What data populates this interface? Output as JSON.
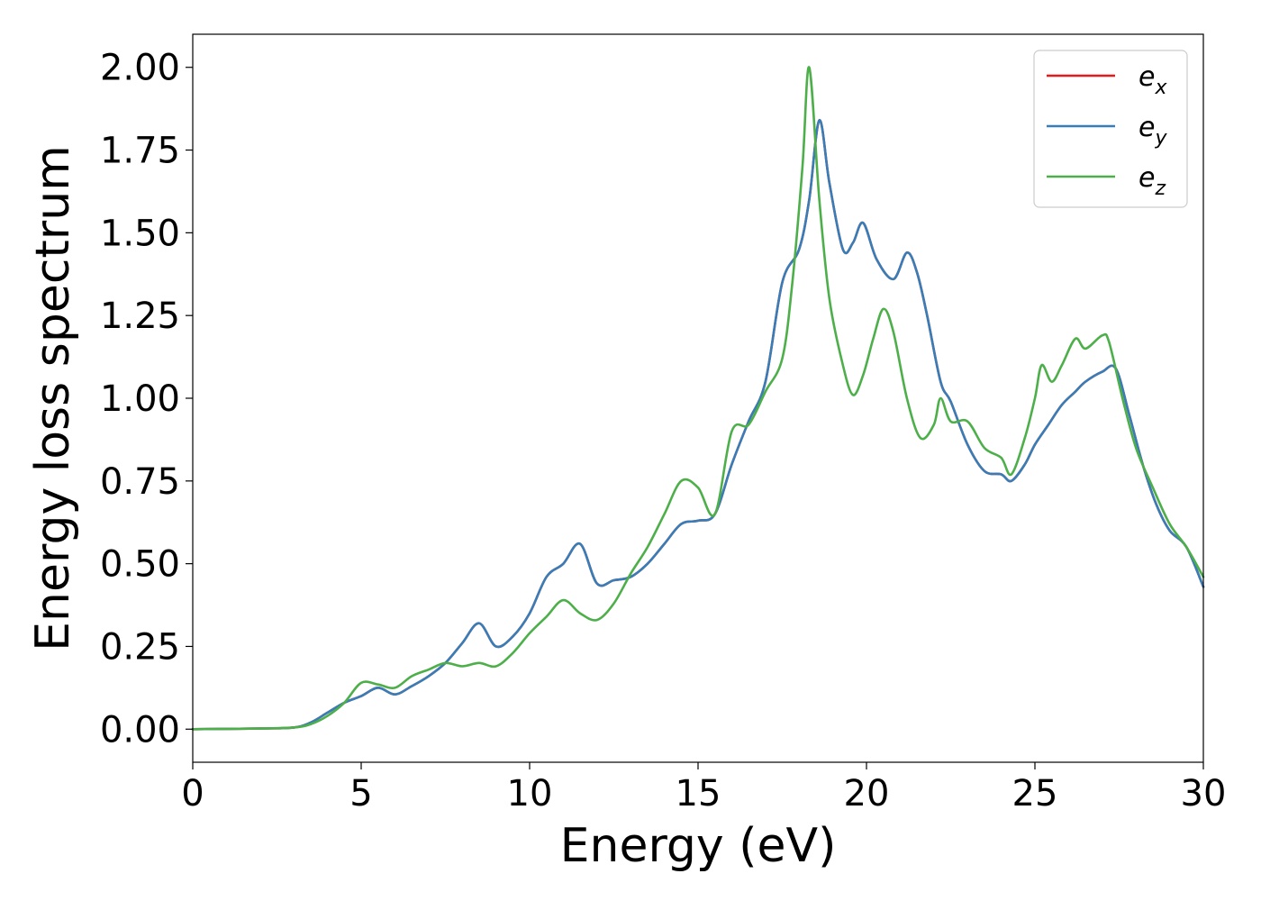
{
  "colors": {
    "ex": "#e41a1c",
    "ey": "#377eb8",
    "ez": "#4daf4a"
  },
  "chart_data": {
    "type": "line",
    "xlabel": "Energy (eV)",
    "ylabel": "Energy loss spectrum",
    "xlim": [
      0,
      30
    ],
    "ylim": [
      -0.1,
      2.1
    ],
    "xticks": [
      "0",
      "5",
      "10",
      "15",
      "20",
      "25",
      "30"
    ],
    "yticks": [
      "0.00",
      "0.25",
      "0.50",
      "0.75",
      "1.00",
      "1.25",
      "1.50",
      "1.75",
      "2.00"
    ],
    "grid": false,
    "legend_position": "top-right",
    "series": [
      {
        "name": "e_x",
        "label_base": "e",
        "label_sub": "x",
        "color": "#e41a1c",
        "x": [
          0,
          2,
          3,
          3.5,
          4,
          4.5,
          5,
          5.5,
          6,
          6.5,
          7,
          7.5,
          8,
          8.5,
          9,
          9.5,
          10,
          10.5,
          11,
          11.5,
          12,
          12.5,
          13,
          13.5,
          14,
          14.5,
          15,
          15.5,
          16,
          16.5,
          17,
          17.5,
          18,
          18.3,
          18.6,
          18.9,
          19.3,
          19.6,
          19.9,
          20.3,
          20.8,
          21.2,
          21.5,
          21.8,
          22.2,
          22.5,
          23,
          23.5,
          24,
          24.3,
          24.7,
          25,
          25.4,
          25.8,
          26.2,
          26.5,
          27,
          27.4,
          27.8,
          28.2,
          28.6,
          29,
          29.5,
          30
        ],
        "y": [
          0,
          0.002,
          0.005,
          0.02,
          0.05,
          0.08,
          0.1,
          0.125,
          0.105,
          0.13,
          0.16,
          0.2,
          0.26,
          0.32,
          0.25,
          0.28,
          0.35,
          0.46,
          0.5,
          0.56,
          0.44,
          0.45,
          0.46,
          0.5,
          0.56,
          0.62,
          0.63,
          0.65,
          0.8,
          0.93,
          1.05,
          1.35,
          1.45,
          1.6,
          1.84,
          1.65,
          1.45,
          1.47,
          1.53,
          1.42,
          1.36,
          1.44,
          1.38,
          1.25,
          1.05,
          0.99,
          0.86,
          0.78,
          0.77,
          0.75,
          0.8,
          0.86,
          0.92,
          0.98,
          1.02,
          1.05,
          1.08,
          1.09,
          0.95,
          0.8,
          0.68,
          0.6,
          0.55,
          0.43
        ]
      },
      {
        "name": "e_y",
        "label_base": "e",
        "label_sub": "y",
        "color": "#377eb8",
        "x": [
          0,
          2,
          3,
          3.5,
          4,
          4.5,
          5,
          5.5,
          6,
          6.5,
          7,
          7.5,
          8,
          8.5,
          9,
          9.5,
          10,
          10.5,
          11,
          11.5,
          12,
          12.5,
          13,
          13.5,
          14,
          14.5,
          15,
          15.5,
          16,
          16.5,
          17,
          17.5,
          18,
          18.3,
          18.6,
          18.9,
          19.3,
          19.6,
          19.9,
          20.3,
          20.8,
          21.2,
          21.5,
          21.8,
          22.2,
          22.5,
          23,
          23.5,
          24,
          24.3,
          24.7,
          25,
          25.4,
          25.8,
          26.2,
          26.5,
          27,
          27.4,
          27.8,
          28.2,
          28.6,
          29,
          29.5,
          30
        ],
        "y": [
          0,
          0.002,
          0.005,
          0.02,
          0.05,
          0.08,
          0.1,
          0.125,
          0.105,
          0.13,
          0.16,
          0.2,
          0.26,
          0.32,
          0.25,
          0.28,
          0.35,
          0.46,
          0.5,
          0.56,
          0.44,
          0.45,
          0.46,
          0.5,
          0.56,
          0.62,
          0.63,
          0.65,
          0.8,
          0.93,
          1.05,
          1.35,
          1.45,
          1.6,
          1.84,
          1.65,
          1.45,
          1.47,
          1.53,
          1.42,
          1.36,
          1.44,
          1.38,
          1.25,
          1.05,
          0.99,
          0.86,
          0.78,
          0.77,
          0.75,
          0.8,
          0.86,
          0.92,
          0.98,
          1.02,
          1.05,
          1.08,
          1.09,
          0.95,
          0.8,
          0.68,
          0.6,
          0.55,
          0.43
        ]
      },
      {
        "name": "e_z",
        "label_base": "e",
        "label_sub": "z",
        "color": "#4daf4a",
        "x": [
          0,
          2,
          3,
          3.5,
          4,
          4.5,
          5,
          5.5,
          6,
          6.5,
          7,
          7.5,
          8,
          8.5,
          9,
          9.5,
          10,
          10.5,
          11,
          11.5,
          12,
          12.5,
          13,
          13.5,
          14,
          14.5,
          15,
          15.5,
          16,
          16.5,
          17,
          17.5,
          17.8,
          18.1,
          18.3,
          18.6,
          18.9,
          19.3,
          19.6,
          19.9,
          20.2,
          20.5,
          20.8,
          21.2,
          21.6,
          22,
          22.2,
          22.5,
          23,
          23.5,
          24,
          24.3,
          24.7,
          25,
          25.2,
          25.5,
          25.8,
          26.2,
          26.5,
          27,
          27.2,
          27.6,
          28,
          28.5,
          29,
          29.5,
          30
        ],
        "y": [
          0,
          0.002,
          0.005,
          0.015,
          0.04,
          0.08,
          0.14,
          0.135,
          0.125,
          0.16,
          0.18,
          0.2,
          0.19,
          0.2,
          0.19,
          0.23,
          0.29,
          0.34,
          0.39,
          0.35,
          0.33,
          0.38,
          0.47,
          0.55,
          0.65,
          0.75,
          0.73,
          0.65,
          0.9,
          0.92,
          1.02,
          1.12,
          1.35,
          1.7,
          2.0,
          1.6,
          1.3,
          1.1,
          1.01,
          1.07,
          1.18,
          1.27,
          1.2,
          1.0,
          0.88,
          0.92,
          1.0,
          0.93,
          0.93,
          0.85,
          0.82,
          0.77,
          0.88,
          1.0,
          1.1,
          1.05,
          1.1,
          1.18,
          1.15,
          1.19,
          1.17,
          1.0,
          0.85,
          0.73,
          0.62,
          0.55,
          0.46
        ]
      }
    ]
  }
}
